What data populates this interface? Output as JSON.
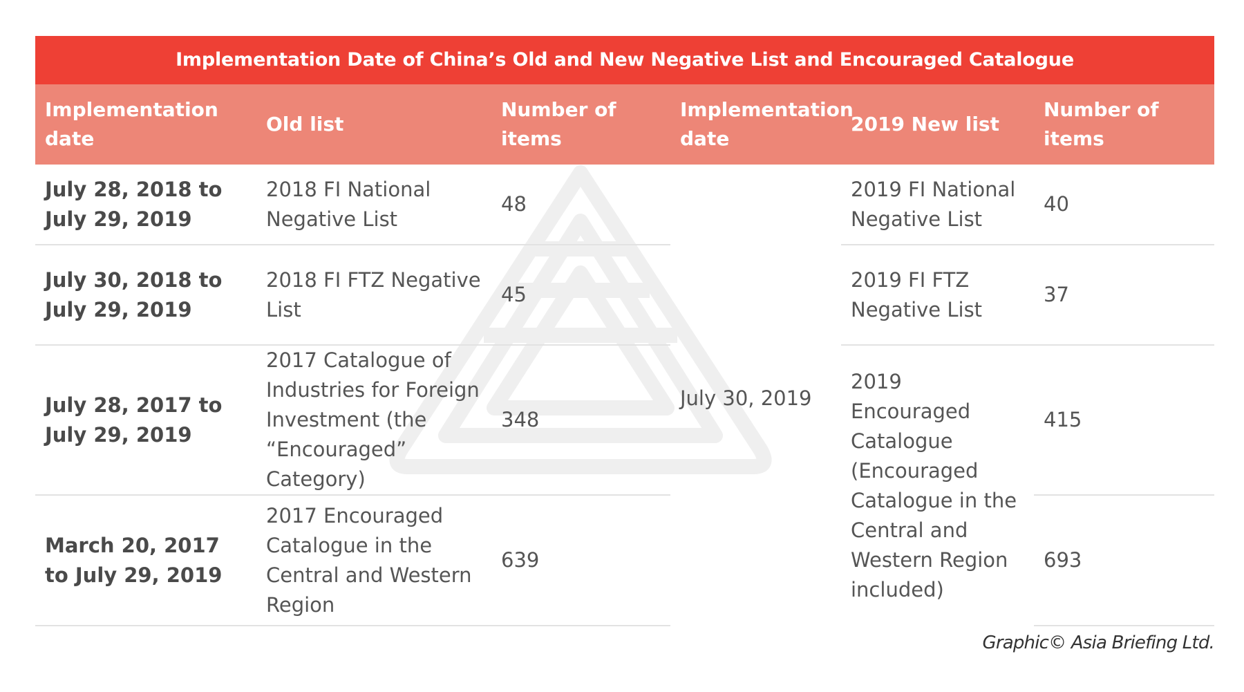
{
  "title": "Implementation Date of China’s Old and New Negative List and Encouraged Catalogue",
  "headers": {
    "impl_date": "Implementation date",
    "old_list": "Old list",
    "old_count": "Number of items",
    "new_impl_date": "Implementation date",
    "new_list": "2019 New list",
    "new_count": "Number of items"
  },
  "rows": [
    {
      "impl_date": "July 28, 2018 to July 29, 2019",
      "old_list": "2018 FI National Negative List",
      "old_count": "48"
    },
    {
      "impl_date": "July 30, 2018 to July 29, 2019",
      "old_list": "2018 FI FTZ Negative List",
      "old_count": "45"
    },
    {
      "impl_date": "July 28, 2017 to July 29, 2019",
      "old_list": "2017 Catalogue of Industries for Foreign Investment (the “Encouraged” Category)",
      "old_count": "348"
    },
    {
      "impl_date": "March 20, 2017 to July 29, 2019",
      "old_list": "2017 Encouraged Catalogue in the Central and Western Region",
      "old_count": "639"
    }
  ],
  "new_impl_date": "July 30, 2019",
  "new_rows": [
    {
      "new_list": "2019 FI National Negative List",
      "new_count": "40"
    },
    {
      "new_list": "2019 FI FTZ Negative List",
      "new_count": "37"
    },
    {
      "new_list": "2019 Encouraged Catalogue (Encouraged Catalogue in the Central and Western Region included)",
      "new_count_a": "415",
      "new_count_b": "693"
    }
  ],
  "credit": "Graphic© Asia Briefing Ltd.",
  "colors": {
    "title_bg": "#ee4035",
    "header_bg": "#ed8677",
    "divider": "#e2e2e2",
    "watermark": "#efefef"
  }
}
